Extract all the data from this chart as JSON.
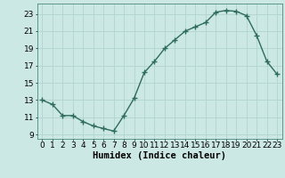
{
  "x": [
    0,
    1,
    2,
    3,
    4,
    5,
    6,
    7,
    8,
    9,
    10,
    11,
    12,
    13,
    14,
    15,
    16,
    17,
    18,
    19,
    20,
    21,
    22,
    23
  ],
  "y": [
    13,
    12.5,
    11.2,
    11.2,
    10.5,
    10,
    9.7,
    9.4,
    11.2,
    13.2,
    16.2,
    17.5,
    19,
    20,
    21,
    21.5,
    22,
    23.2,
    23.4,
    23.3,
    22.8,
    20.5,
    17.5,
    16
  ],
  "line_color": "#2d6b5e",
  "marker": "+",
  "marker_size": 4,
  "background_color": "#cce8e4",
  "grid_color": "#b0d4cf",
  "xlabel": "Humidex (Indice chaleur)",
  "xlim": [
    -0.5,
    23.5
  ],
  "ylim": [
    8.5,
    24.2
  ],
  "yticks": [
    9,
    11,
    13,
    15,
    17,
    19,
    21,
    23
  ],
  "xticks": [
    0,
    1,
    2,
    3,
    4,
    5,
    6,
    7,
    8,
    9,
    10,
    11,
    12,
    13,
    14,
    15,
    16,
    17,
    18,
    19,
    20,
    21,
    22,
    23
  ],
  "xlabel_fontsize": 7.5,
  "tick_fontsize": 6.5,
  "line_width": 1.0
}
